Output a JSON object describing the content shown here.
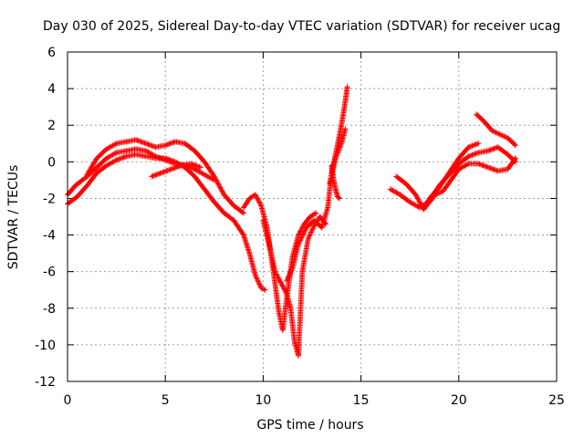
{
  "chart_data": {
    "type": "scatter",
    "title": "Day 030 of 2025, Sidereal Day-to-day VTEC variation (SDTVAR) for receiver ucag",
    "xlabel": "GPS time / hours",
    "ylabel": "SDTVAR / TECUs",
    "xlim": [
      0,
      25
    ],
    "ylim": [
      -12,
      6
    ],
    "xticks": [
      "0",
      "5",
      "10",
      "15",
      "20",
      "25"
    ],
    "yticks": [
      "-12",
      "-10",
      "-8",
      "-6",
      "-4",
      "-2",
      "0",
      "2",
      "4",
      "6"
    ],
    "grid": true,
    "marker": "+",
    "color": "#ff0000",
    "series": [
      {
        "name": "trace-a",
        "x": [
          0,
          0.5,
          1.0,
          1.5,
          2.0,
          2.5,
          3.0,
          3.5,
          4.0,
          4.5,
          5.0,
          5.5,
          6.0,
          6.5,
          7.0,
          7.5,
          8.0,
          8.5,
          9.0,
          9.3,
          9.6,
          9.9,
          10.1
        ],
        "y": [
          -2.3,
          -1.9,
          -1.3,
          -0.6,
          -0.2,
          0.1,
          0.3,
          0.4,
          0.3,
          0.2,
          0.2,
          0.0,
          -0.3,
          -0.8,
          -1.5,
          -2.2,
          -2.8,
          -3.2,
          -4.0,
          -5.0,
          -6.2,
          -6.9,
          -7.0
        ]
      },
      {
        "name": "trace-b",
        "x": [
          0,
          0.4,
          1.0,
          1.5,
          2.0,
          2.5,
          3.0,
          3.5,
          4.0,
          4.5,
          5.0,
          5.5,
          6.0,
          6.5,
          7.0,
          7.5
        ],
        "y": [
          -1.8,
          -1.3,
          -0.8,
          -0.3,
          0.2,
          0.5,
          0.6,
          0.7,
          0.6,
          0.3,
          0.1,
          -0.1,
          -0.2,
          -0.4,
          -0.7,
          -1.0
        ]
      },
      {
        "name": "trace-c",
        "x": [
          1.0,
          1.5,
          2.0,
          2.5,
          3.0,
          3.5,
          4.0,
          4.5,
          5.0,
          5.5,
          6.0,
          6.5,
          7.0,
          7.5,
          8.0,
          8.5,
          9.0
        ],
        "y": [
          -0.7,
          0.2,
          0.7,
          1.0,
          1.1,
          1.2,
          1.0,
          0.8,
          0.9,
          1.1,
          1.0,
          0.6,
          0.0,
          -0.8,
          -1.8,
          -2.4,
          -2.8
        ]
      },
      {
        "name": "trace-d",
        "x": [
          4.3,
          4.8,
          5.3,
          5.8,
          6.3,
          6.8
        ],
        "y": [
          -0.8,
          -0.6,
          -0.4,
          -0.2,
          -0.1,
          -0.3
        ]
      },
      {
        "name": "trace-e",
        "x": [
          9.0,
          9.3,
          9.6,
          9.9,
          10.2,
          10.5,
          10.8,
          11.0,
          11.2,
          11.5,
          11.8,
          12.1,
          12.4,
          12.7
        ],
        "y": [
          -2.5,
          -2.0,
          -1.8,
          -2.4,
          -3.6,
          -5.8,
          -8.2,
          -9.2,
          -7.5,
          -5.2,
          -4.0,
          -3.4,
          -3.0,
          -2.8
        ]
      },
      {
        "name": "trace-f",
        "x": [
          10.0,
          10.3,
          10.6,
          10.9,
          11.2,
          11.4,
          11.6,
          11.8,
          12.0,
          12.3,
          12.6,
          12.9,
          13.2
        ],
        "y": [
          -3.2,
          -4.5,
          -6.0,
          -6.6,
          -7.2,
          -8.0,
          -9.8,
          -10.6,
          -6.0,
          -4.2,
          -3.5,
          -3.0,
          -3.4
        ]
      },
      {
        "name": "trace-g",
        "x": [
          11.2,
          11.5,
          11.8,
          12.2,
          12.6,
          13.0,
          13.3,
          13.5,
          13.8,
          14.0,
          14.2,
          14.3
        ],
        "y": [
          -6.5,
          -5.8,
          -4.5,
          -3.6,
          -3.2,
          -3.6,
          -2.5,
          -0.6,
          0.9,
          2.0,
          3.3,
          4.1
        ]
      },
      {
        "name": "trace-h",
        "x": [
          13.4,
          13.7,
          14.0,
          14.2
        ],
        "y": [
          -1.2,
          0.2,
          1.0,
          1.8
        ]
      },
      {
        "name": "trace-i",
        "x": [
          13.5,
          13.6,
          13.7,
          13.8,
          13.9
        ],
        "y": [
          -0.2,
          -1.0,
          -1.5,
          -1.9,
          -2.0
        ]
      },
      {
        "name": "trace-j",
        "x": [
          16.5,
          17.0,
          17.5,
          18.0,
          18.3,
          18.7,
          19.0,
          19.5,
          20.0,
          20.5,
          21.0,
          21.5,
          22.0,
          22.5,
          22.9
        ],
        "y": [
          -1.5,
          -1.8,
          -2.2,
          -2.5,
          -2.3,
          -1.8,
          -1.3,
          -0.7,
          -0.1,
          0.3,
          0.5,
          0.6,
          0.8,
          0.4,
          0.0
        ]
      },
      {
        "name": "trace-k",
        "x": [
          16.8,
          17.3,
          17.8,
          18.2,
          18.5,
          18.8,
          19.2,
          19.6,
          20.0,
          20.5,
          21.0,
          21.5,
          22.0,
          22.5,
          22.9
        ],
        "y": [
          -0.8,
          -1.2,
          -1.8,
          -2.6,
          -2.2,
          -1.8,
          -1.6,
          -1.0,
          -0.4,
          -0.1,
          -0.1,
          -0.3,
          -0.5,
          -0.4,
          0.2
        ]
      },
      {
        "name": "trace-l",
        "x": [
          18.5,
          19.0,
          19.5,
          20.0,
          20.5,
          21.0
        ],
        "y": [
          -2.0,
          -1.4,
          -0.6,
          0.2,
          0.8,
          1.0
        ]
      },
      {
        "name": "trace-m",
        "x": [
          20.9,
          21.3,
          21.7,
          22.1,
          22.5,
          22.9
        ],
        "y": [
          2.6,
          2.2,
          1.7,
          1.5,
          1.3,
          0.9
        ]
      }
    ]
  }
}
